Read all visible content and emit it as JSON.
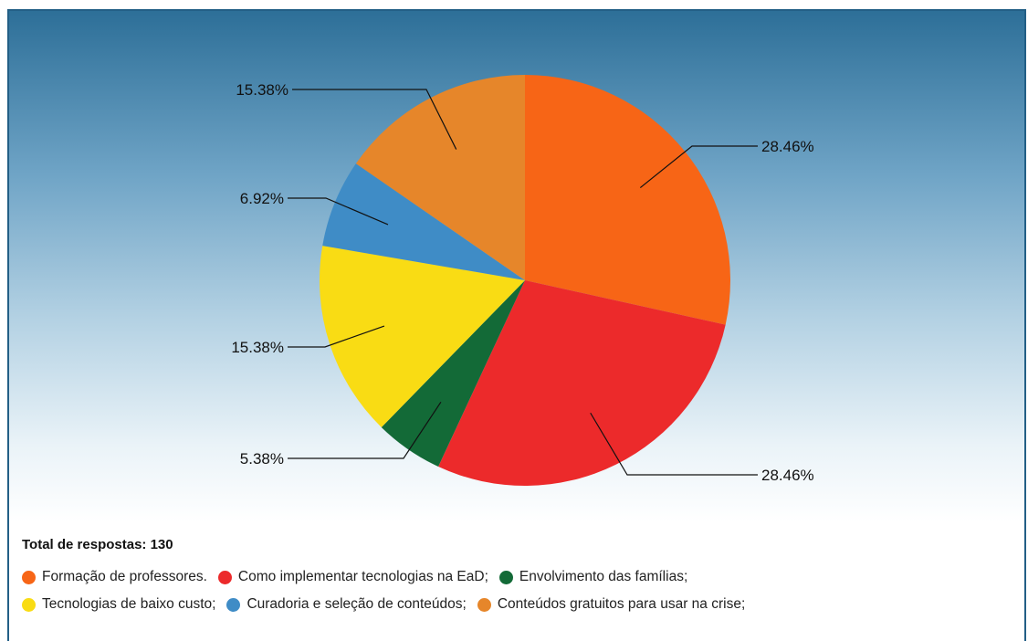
{
  "chart_data": {
    "type": "pie",
    "title": "",
    "total_label": "Total de respostas: 130",
    "slices": [
      {
        "label": "Formação de professores.",
        "value": 28.46,
        "display": "28.46%",
        "color": "#f76516"
      },
      {
        "label": "Como implementar tecnologias na EaD;",
        "value": 28.46,
        "display": "28.46%",
        "color": "#ec2a2b"
      },
      {
        "label": "Envolvimento das famílias;",
        "value": 5.38,
        "display": "5.38%",
        "color": "#136a37"
      },
      {
        "label": "Tecnologias de baixo custo;",
        "value": 15.38,
        "display": "15.38%",
        "color": "#f9dc14"
      },
      {
        "label": "Curadoria e seleção de conteúdos;",
        "value": 6.92,
        "display": "6.92%",
        "color": "#3f8cc6"
      },
      {
        "label": "Conteúdos gratuitos para usar na crise;",
        "value": 15.38,
        "display": "15.38%",
        "color": "#e6862a"
      }
    ],
    "legend_position": "bottom-left",
    "grid": false
  }
}
